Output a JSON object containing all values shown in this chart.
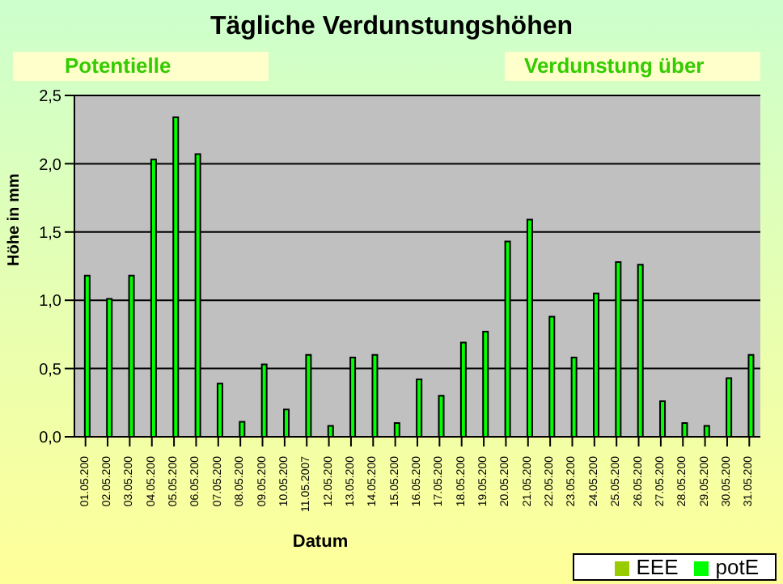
{
  "chart_data": {
    "type": "bar",
    "title": "Tägliche Verdunstungshöhen",
    "annotations": [
      "Potentielle",
      "Verdunstung über"
    ],
    "xlabel": "Datum",
    "ylabel": "Höhe in mm",
    "categories": [
      "01.05.200",
      "02.05.200",
      "03.05.200",
      "04.05.200",
      "05.05.200",
      "06.05.200",
      "07.05.200",
      "08.05.200",
      "09.05.200",
      "10.05.200",
      "11.05.2007",
      "12.05.200",
      "13.05.200",
      "14.05.200",
      "15.05.200",
      "16.05.200",
      "17.05.200",
      "18.05.200",
      "19.05.200",
      "20.05.200",
      "21.05.200",
      "22.05.200",
      "23.05.200",
      "24.05.200",
      "25.05.200",
      "26.05.200",
      "27.05.200",
      "28.05.200",
      "29.05.200",
      "30.05.200",
      "31.05.200"
    ],
    "series": [
      {
        "name": "EEE",
        "color": "#99cc00",
        "values": [
          0,
          0,
          0,
          0,
          0,
          0,
          0,
          0,
          0,
          0,
          0,
          0,
          0,
          0,
          0,
          0,
          0,
          0,
          0,
          0,
          0,
          0,
          0,
          0,
          0,
          0,
          0,
          0,
          0,
          0,
          0
        ]
      },
      {
        "name": "potE",
        "color": "#00ff00",
        "values": [
          1.18,
          1.01,
          1.18,
          2.03,
          2.34,
          2.07,
          0.39,
          0.11,
          0.53,
          0.2,
          0.6,
          0.08,
          0.58,
          0.6,
          0.1,
          0.42,
          0.3,
          0.69,
          0.77,
          1.43,
          1.59,
          0.88,
          0.58,
          1.05,
          1.28,
          1.26,
          0.26,
          0.1,
          0.08,
          0.43,
          0.6
        ]
      }
    ],
    "ylim": [
      0,
      2.5
    ],
    "yticks": [
      {
        "value": 0,
        "label": "0,0"
      },
      {
        "value": 0.5,
        "label": "0,5"
      },
      {
        "value": 1,
        "label": "1,0"
      },
      {
        "value": 1.5,
        "label": "1,5"
      },
      {
        "value": 2,
        "label": "2,0"
      },
      {
        "value": 2.5,
        "label": "2,5"
      }
    ],
    "grid": "y",
    "legend": "bottom right"
  }
}
